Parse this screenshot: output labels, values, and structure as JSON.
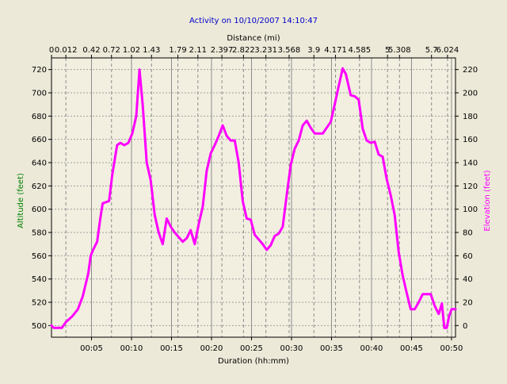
{
  "chart_data": {
    "type": "line",
    "title": "Activity on 10/10/2007 14:10:47",
    "xlabel": "Duration (hh:mm)",
    "x2label": "Distance (mi)",
    "ylabel": "Altitude (feet)",
    "y2label": "Elevation (feet)",
    "x_unit": "minutes",
    "xlim": [
      0,
      50.5
    ],
    "ylim": [
      490,
      730
    ],
    "y2lim": [
      -10,
      230
    ],
    "grid": true,
    "bottom_ticks": [
      {
        "x": 5,
        "label": "00:05"
      },
      {
        "x": 10,
        "label": "00:10"
      },
      {
        "x": 15,
        "label": "00:15"
      },
      {
        "x": 20,
        "label": "00:20"
      },
      {
        "x": 25,
        "label": "00:25"
      },
      {
        "x": 30,
        "label": "00:30"
      },
      {
        "x": 35,
        "label": "00:35"
      },
      {
        "x": 40,
        "label": "00:40"
      },
      {
        "x": 45,
        "label": "00:45"
      },
      {
        "x": 50,
        "label": "00:50"
      }
    ],
    "top_ticks": [
      {
        "x": 0,
        "label": "0"
      },
      {
        "x": 1.8,
        "label": "0.012"
      },
      {
        "x": 5,
        "label": "0.42"
      },
      {
        "x": 7.5,
        "label": "0.72"
      },
      {
        "x": 10,
        "label": "1.02"
      },
      {
        "x": 12.5,
        "label": "1.43"
      },
      {
        "x": 15.8,
        "label": "1.79"
      },
      {
        "x": 18.3,
        "label": "2.11"
      },
      {
        "x": 21.3,
        "label": "2.397"
      },
      {
        "x": 24,
        "label": "2.822"
      },
      {
        "x": 26.8,
        "label": "3.231"
      },
      {
        "x": 29.7,
        "label": "3.568"
      },
      {
        "x": 32.8,
        "label": "3.9"
      },
      {
        "x": 35.5,
        "label": "4.171"
      },
      {
        "x": 38.5,
        "label": "4.585"
      },
      {
        "x": 42,
        "label": "5"
      },
      {
        "x": 43.5,
        "label": "5.308"
      },
      {
        "x": 47.5,
        "label": "5.7"
      },
      {
        "x": 49.5,
        "label": "6.024"
      }
    ],
    "left_ticks": [
      500,
      520,
      540,
      560,
      580,
      600,
      620,
      640,
      660,
      680,
      700,
      720
    ],
    "right_ticks": [
      0,
      20,
      40,
      60,
      80,
      100,
      120,
      140,
      160,
      180,
      200,
      220
    ],
    "series": [
      {
        "color": "#ff00ff",
        "x": [
          0,
          0.3,
          1.3,
          1.8,
          2.6,
          3.3,
          3.9,
          4.6,
          4.9,
          5.2,
          5.7,
          6.1,
          6.4,
          7.2,
          7.6,
          8.2,
          8.6,
          9.1,
          9.6,
          10.1,
          10.6,
          11.0,
          11.4,
          11.9,
          12.4,
          12.9,
          13.4,
          13.9,
          14.4,
          14.9,
          15.4,
          15.9,
          16.4,
          16.9,
          17.4,
          17.9,
          18.4,
          18.9,
          19.4,
          19.9,
          20.4,
          20.9,
          21.4,
          21.9,
          22.4,
          22.9,
          23.4,
          23.9,
          24.4,
          24.9,
          25.4,
          25.9,
          26.4,
          26.9,
          27.4,
          27.9,
          28.4,
          28.9,
          29.4,
          29.9,
          30.4,
          30.9,
          31.4,
          31.9,
          32.4,
          32.9,
          33.4,
          33.9,
          34.4,
          34.9,
          35.4,
          35.9,
          36.4,
          36.8,
          37.4,
          37.9,
          38.4,
          38.9,
          39.4,
          39.9,
          40.4,
          40.9,
          41.4,
          41.9,
          42.4,
          42.9,
          43.4,
          43.9,
          44.4,
          44.9,
          45.4,
          45.9,
          46.4,
          46.9,
          47.4,
          47.9,
          48.4,
          48.8,
          49.1,
          49.4,
          49.7,
          50.0,
          50.5
        ],
        "y": [
          500,
          498,
          498,
          503,
          508,
          514,
          525,
          545,
          560,
          565,
          572,
          592,
          605,
          607,
          630,
          655,
          657,
          655,
          657,
          665,
          680,
          720,
          690,
          640,
          625,
          595,
          580,
          570,
          592,
          585,
          580,
          576,
          572,
          575,
          582,
          570,
          587,
          602,
          633,
          648,
          655,
          663,
          672,
          663,
          659,
          659,
          640,
          607,
          592,
          591,
          578,
          574,
          570,
          565,
          569,
          577,
          579,
          585,
          612,
          638,
          652,
          659,
          672,
          676,
          670,
          665,
          665,
          665,
          670,
          675,
          690,
          706,
          721,
          716,
          698,
          697,
          694,
          669,
          659,
          657,
          658,
          647,
          645,
          626,
          612,
          595,
          563,
          543,
          528,
          514,
          514,
          520,
          527,
          527,
          527,
          517,
          510,
          519,
          498,
          498,
          508,
          514,
          514
        ]
      }
    ]
  }
}
